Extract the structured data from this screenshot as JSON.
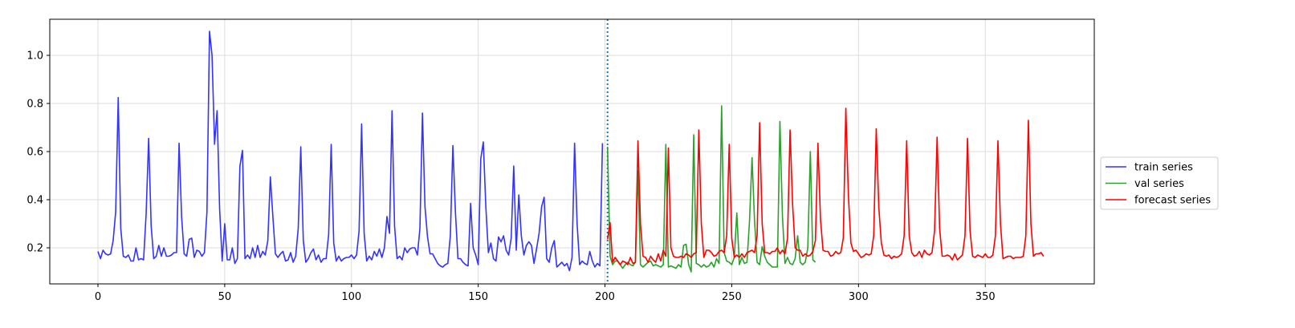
{
  "chart_data": {
    "type": "line",
    "title": "",
    "xlabel": "",
    "ylabel": "",
    "xlim": [
      -19,
      393
    ],
    "ylim": [
      0.05,
      1.15
    ],
    "xticks": [
      0,
      50,
      100,
      150,
      200,
      250,
      300,
      350
    ],
    "yticks": [
      0.2,
      0.4,
      0.6,
      0.8,
      1.0
    ],
    "grid": true,
    "legend_position": "right",
    "split_line_x": 201,
    "series": [
      {
        "name": "train series",
        "color": "#3333ff",
        "x_start": 0,
        "values": [
          0.185,
          0.155,
          0.19,
          0.175,
          0.17,
          0.175,
          0.23,
          0.35,
          0.825,
          0.28,
          0.165,
          0.16,
          0.17,
          0.145,
          0.145,
          0.2,
          0.15,
          0.155,
          0.15,
          0.34,
          0.655,
          0.29,
          0.155,
          0.165,
          0.21,
          0.165,
          0.2,
          0.165,
          0.165,
          0.17,
          0.18,
          0.18,
          0.635,
          0.33,
          0.175,
          0.165,
          0.235,
          0.24,
          0.16,
          0.19,
          0.185,
          0.165,
          0.18,
          0.35,
          1.1,
          1.0,
          0.63,
          0.77,
          0.36,
          0.145,
          0.3,
          0.15,
          0.15,
          0.2,
          0.135,
          0.155,
          0.54,
          0.605,
          0.155,
          0.17,
          0.155,
          0.2,
          0.16,
          0.21,
          0.16,
          0.185,
          0.17,
          0.23,
          0.495,
          0.33,
          0.175,
          0.16,
          0.175,
          0.185,
          0.145,
          0.15,
          0.18,
          0.14,
          0.165,
          0.28,
          0.62,
          0.23,
          0.14,
          0.155,
          0.18,
          0.195,
          0.15,
          0.17,
          0.14,
          0.155,
          0.155,
          0.255,
          0.63,
          0.22,
          0.145,
          0.165,
          0.145,
          0.155,
          0.16,
          0.16,
          0.17,
          0.155,
          0.17,
          0.27,
          0.715,
          0.26,
          0.145,
          0.165,
          0.15,
          0.185,
          0.165,
          0.195,
          0.16,
          0.2,
          0.33,
          0.26,
          0.77,
          0.29,
          0.155,
          0.165,
          0.15,
          0.2,
          0.18,
          0.195,
          0.2,
          0.2,
          0.17,
          0.28,
          0.76,
          0.37,
          0.245,
          0.175,
          0.175,
          0.155,
          0.135,
          0.125,
          0.12,
          0.13,
          0.135,
          0.25,
          0.625,
          0.35,
          0.155,
          0.155,
          0.14,
          0.13,
          0.125,
          0.385,
          0.2,
          0.17,
          0.13,
          0.57,
          0.64,
          0.37,
          0.18,
          0.22,
          0.155,
          0.145,
          0.245,
          0.225,
          0.25,
          0.19,
          0.17,
          0.24,
          0.54,
          0.19,
          0.42,
          0.25,
          0.17,
          0.21,
          0.225,
          0.21,
          0.135,
          0.195,
          0.26,
          0.37,
          0.41,
          0.155,
          0.14,
          0.2,
          0.23,
          0.12,
          0.13,
          0.14,
          0.125,
          0.135,
          0.105,
          0.16,
          0.635,
          0.3,
          0.13,
          0.145,
          0.135,
          0.13,
          0.185,
          0.145,
          0.12,
          0.135,
          0.125,
          0.635
        ]
      },
      {
        "name": "val series",
        "color": "#2ca02c",
        "x_start": 201,
        "values": [
          0.62,
          0.165,
          0.13,
          0.145,
          0.145,
          0.13,
          0.115,
          0.13,
          0.14,
          0.13,
          0.125,
          0.14,
          0.52,
          0.13,
          0.12,
          0.13,
          0.14,
          0.145,
          0.125,
          0.13,
          0.125,
          0.12,
          0.13,
          0.63,
          0.12,
          0.125,
          0.12,
          0.115,
          0.13,
          0.12,
          0.21,
          0.215,
          0.13,
          0.1,
          0.67,
          0.135,
          0.13,
          0.12,
          0.13,
          0.12,
          0.125,
          0.14,
          0.12,
          0.155,
          0.135,
          0.79,
          0.18,
          0.145,
          0.14,
          0.13,
          0.16,
          0.345,
          0.13,
          0.16,
          0.135,
          0.14,
          0.31,
          0.575,
          0.31,
          0.14,
          0.13,
          0.205,
          0.165,
          0.14,
          0.13,
          0.12,
          0.12,
          0.12,
          0.725,
          0.33,
          0.135,
          0.16,
          0.135,
          0.13,
          0.155,
          0.25,
          0.14,
          0.13,
          0.14,
          0.2,
          0.6,
          0.15,
          0.14
        ]
      },
      {
        "name": "forecast series",
        "color": "#ff0000",
        "x_start": 201,
        "values": [
          0.235,
          0.305,
          0.14,
          0.16,
          0.145,
          0.13,
          0.145,
          0.14,
          0.13,
          0.16,
          0.135,
          0.14,
          0.645,
          0.3,
          0.165,
          0.16,
          0.14,
          0.165,
          0.15,
          0.14,
          0.175,
          0.145,
          0.19,
          0.165,
          0.615,
          0.2,
          0.165,
          0.16,
          0.16,
          0.165,
          0.16,
          0.175,
          0.17,
          0.16,
          0.175,
          0.18,
          0.69,
          0.3,
          0.16,
          0.19,
          0.19,
          0.18,
          0.165,
          0.17,
          0.185,
          0.19,
          0.18,
          0.25,
          0.63,
          0.24,
          0.16,
          0.17,
          0.16,
          0.175,
          0.16,
          0.18,
          0.185,
          0.19,
          0.18,
          0.25,
          0.72,
          0.3,
          0.18,
          0.18,
          0.175,
          0.185,
          0.185,
          0.2,
          0.175,
          0.19,
          0.175,
          0.24,
          0.69,
          0.38,
          0.2,
          0.19,
          0.19,
          0.165,
          0.175,
          0.165,
          0.17,
          0.185,
          0.23,
          0.635,
          0.32,
          0.19,
          0.185,
          0.185,
          0.165,
          0.17,
          0.185,
          0.175,
          0.18,
          0.24,
          0.78,
          0.42,
          0.22,
          0.185,
          0.19,
          0.175,
          0.16,
          0.165,
          0.175,
          0.17,
          0.175,
          0.25,
          0.695,
          0.37,
          0.22,
          0.17,
          0.165,
          0.17,
          0.155,
          0.165,
          0.16,
          0.165,
          0.175,
          0.25,
          0.645,
          0.25,
          0.18,
          0.165,
          0.17,
          0.185,
          0.16,
          0.19,
          0.175,
          0.17,
          0.18,
          0.27,
          0.66,
          0.28,
          0.165,
          0.165,
          0.17,
          0.165,
          0.15,
          0.175,
          0.15,
          0.16,
          0.17,
          0.25,
          0.655,
          0.27,
          0.165,
          0.16,
          0.17,
          0.165,
          0.16,
          0.175,
          0.16,
          0.16,
          0.17,
          0.25,
          0.645,
          0.3,
          0.155,
          0.16,
          0.165,
          0.165,
          0.155,
          0.16,
          0.16,
          0.16,
          0.165,
          0.25,
          0.73,
          0.3,
          0.165,
          0.175,
          0.175,
          0.18,
          0.165
        ]
      }
    ]
  }
}
